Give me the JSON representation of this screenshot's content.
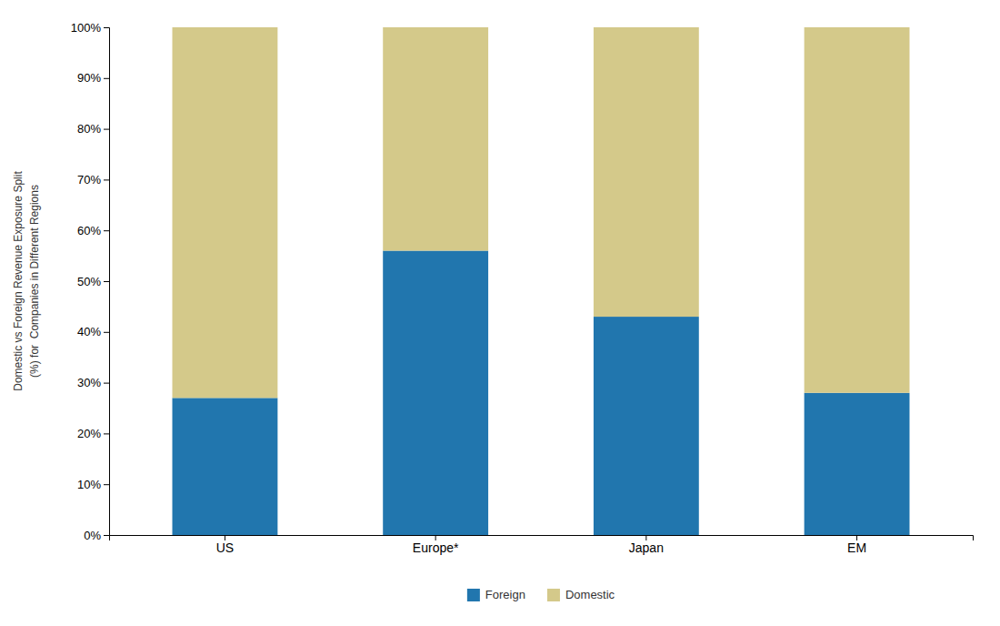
{
  "chart_data": {
    "type": "bar",
    "stacked": true,
    "categories": [
      "US",
      "Europe*",
      "Japan",
      "EM"
    ],
    "series": [
      {
        "name": "Foreign",
        "color": "#2176ae",
        "values": [
          27,
          56,
          43,
          28
        ]
      },
      {
        "name": "Domestic",
        "color": "#d4c98a",
        "values": [
          73,
          44,
          57,
          72
        ]
      }
    ],
    "ylabel": "Domestic vs Foreign Revenue Exposure Split\n(%) for  Companies in Different Regions",
    "ylim": [
      0,
      100
    ],
    "yticks": [
      {
        "value": 0,
        "label": "0%"
      },
      {
        "value": 10,
        "label": "10%"
      },
      {
        "value": 20,
        "label": "20%"
      },
      {
        "value": 30,
        "label": "30%"
      },
      {
        "value": 40,
        "label": "40%"
      },
      {
        "value": 50,
        "label": "50%"
      },
      {
        "value": 60,
        "label": "60%"
      },
      {
        "value": 70,
        "label": "70%"
      },
      {
        "value": 80,
        "label": "80%"
      },
      {
        "value": 90,
        "label": "90%"
      },
      {
        "value": 100,
        "label": "100%"
      }
    ],
    "grid": false,
    "legend": "bottom"
  }
}
